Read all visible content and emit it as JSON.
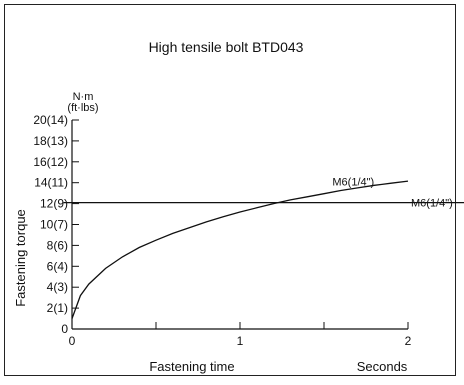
{
  "chart_data": {
    "type": "line",
    "title": "High tensile bolt BTD043",
    "ylabel": "Fastening torque",
    "y_unit_top": "N·m",
    "y_unit_bottom": "(ft·lbs)",
    "xlabel": "Fastening time",
    "x_unit": "Seconds",
    "xlim": [
      0,
      2
    ],
    "ylim": [
      0,
      20
    ],
    "x_ticks": [
      0,
      0.5,
      1,
      1.5,
      2
    ],
    "x_tick_labels": [
      {
        "x": 0,
        "label": "0"
      },
      {
        "x": 1,
        "label": "1"
      },
      {
        "x": 2,
        "label": "2"
      }
    ],
    "y_ticks": [
      {
        "y": 0,
        "label": "0"
      },
      {
        "y": 2,
        "label": "2(1)"
      },
      {
        "y": 4,
        "label": "4(3)"
      },
      {
        "y": 6,
        "label": "6(4)"
      },
      {
        "y": 8,
        "label": "8(6)"
      },
      {
        "y": 10,
        "label": "10(7)"
      },
      {
        "y": 12,
        "label": "12(9)"
      },
      {
        "y": 14,
        "label": "14(11)"
      },
      {
        "y": 16,
        "label": "16(12)"
      },
      {
        "y": 18,
        "label": "18(13)"
      },
      {
        "y": 20,
        "label": "20(14)"
      }
    ],
    "series": [
      {
        "name": "M6(1/4\")",
        "kind": "curve",
        "x": [
          0,
          0.05,
          0.1,
          0.2,
          0.3,
          0.4,
          0.5,
          0.6,
          0.7,
          0.8,
          0.9,
          1.0,
          1.1,
          1.2,
          1.3,
          1.4,
          1.5,
          1.6,
          1.7,
          1.8,
          1.9,
          2.0
        ],
        "y": [
          1.0,
          3.2,
          4.3,
          5.8,
          6.9,
          7.8,
          8.5,
          9.15,
          9.7,
          10.25,
          10.75,
          11.2,
          11.6,
          12.0,
          12.35,
          12.65,
          12.95,
          13.25,
          13.5,
          13.75,
          13.95,
          14.15
        ],
        "color": "#111111"
      },
      {
        "name": "M6(1/4\")",
        "kind": "horizontal",
        "x": [
          -0.05,
          2.35
        ],
        "y": [
          12.1,
          12.1
        ],
        "color": "#111111"
      }
    ],
    "grid": false,
    "legend": "inline labels"
  }
}
